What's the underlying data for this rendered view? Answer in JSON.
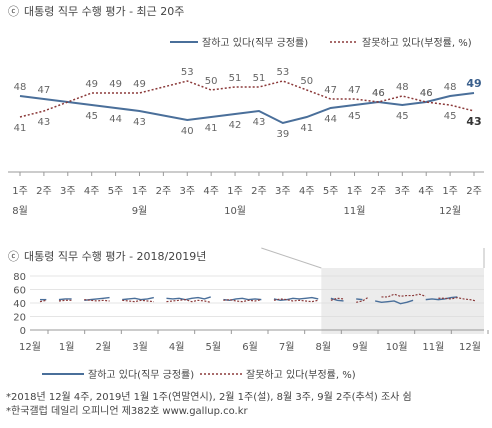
{
  "colors": {
    "approve": "#4a6f9a",
    "disapprove": "#8b3a3a",
    "shade": "#ececec"
  },
  "main": {
    "title": "대통령 직무 수행 평가 - 최근 20주",
    "title_icon": "ⓒ",
    "legend": {
      "approve": "잘하고 있다(직무 긍정률)",
      "disapprove": "잘못하고 있다(부정률, %)"
    },
    "week_labels": [
      "1주",
      "2주",
      "3주",
      "4주",
      "5주",
      "1주",
      "2주",
      "3주",
      "4주",
      "1주",
      "2주",
      "3주",
      "4주",
      "5주",
      "1주",
      "2주",
      "3주",
      "4주",
      "1주",
      "2주"
    ],
    "month_labels": [
      {
        "index": 0,
        "text": "8월"
      },
      {
        "index": 5,
        "text": "9월"
      },
      {
        "index": 9,
        "text": "10월"
      },
      {
        "index": 14,
        "text": "11월"
      },
      {
        "index": 18,
        "text": "12월"
      }
    ]
  },
  "chart_data": [
    {
      "type": "line",
      "title": "대통령 직무 수행 평가 - 최근 20주",
      "x": [
        "8월 1주",
        "8월 2주",
        "8월 3주",
        "8월 4주",
        "8월 5주",
        "9월 1주",
        "9월 2주",
        "9월 3주",
        "9월 4주",
        "10월 1주",
        "10월 2주",
        "10월 3주",
        "10월 4주",
        "10월 5주",
        "11월 1주",
        "11월 2주",
        "11월 3주",
        "11월 4주",
        "12월 1주",
        "12월 2주"
      ],
      "series": [
        {
          "name": "잘하고 있다(직무 긍정률)",
          "values": [
            48,
            47,
            null,
            45,
            44,
            43,
            null,
            40,
            41,
            42,
            43,
            39,
            41,
            44,
            45,
            46,
            45,
            46,
            48,
            49
          ],
          "visible_labels": [
            48,
            47,
            null,
            45,
            44,
            43,
            null,
            40,
            41,
            42,
            43,
            39,
            41,
            44,
            45,
            46,
            45,
            46,
            48,
            49
          ]
        },
        {
          "name": "잘못하고 있다(부정률, %)",
          "values": [
            41,
            43,
            null,
            49,
            49,
            49,
            null,
            53,
            50,
            51,
            51,
            53,
            50,
            47,
            47,
            46,
            48,
            46,
            45,
            43
          ],
          "visible_labels": [
            41,
            43,
            null,
            49,
            49,
            49,
            null,
            53,
            50,
            51,
            51,
            53,
            50,
            47,
            47,
            46,
            48,
            46,
            45,
            43
          ]
        }
      ],
      "ylim": [
        30,
        60
      ]
    },
    {
      "type": "line",
      "title": "대통령 직무 수행 평가 - 2018/2019년",
      "months": [
        "12월",
        "1월",
        "2월",
        "3월",
        "4월",
        "5월",
        "6월",
        "7월",
        "8월",
        "9월",
        "10월",
        "11월",
        "12월"
      ],
      "yticks": [
        0,
        20,
        40,
        60,
        80
      ],
      "ylim": [
        0,
        80
      ],
      "highlight_from": "8월",
      "series": [
        {
          "name": "잘하고 있다(직무 긍정률)",
          "segments": [
            [
              45,
              45
            ],
            [
              45,
              46,
              46
            ],
            [
              44,
              45,
              46,
              47,
              48
            ],
            [
              45,
              46,
              47,
              45,
              46,
              48
            ],
            [
              47,
              46,
              47,
              45,
              47,
              48,
              46,
              49
            ],
            [
              45,
              44,
              46,
              47,
              45,
              46,
              45
            ],
            [
              46,
              44,
              45,
              47,
              46,
              47,
              48,
              46
            ],
            [
              47,
              44,
              43
            ],
            [
              46,
              45
            ],
            [
              43,
              41,
              42,
              43,
              39,
              41,
              44
            ],
            [
              45,
              46,
              45,
              46,
              48,
              49
            ]
          ]
        },
        {
          "name": "잘못하고 있다(부정률, %)",
          "segments": [
            [
              42,
              44
            ],
            [
              43,
              44,
              44
            ],
            [
              45,
              44,
              43,
              44,
              43
            ],
            [
              44,
              43,
              42,
              44,
              43,
              42
            ],
            [
              42,
              43,
              44,
              45,
              42,
              44,
              43,
              41
            ],
            [
              44,
              45,
              43,
              42,
              44,
              43,
              45
            ],
            [
              44,
              46,
              45,
              43,
              44,
              43,
              42,
              44
            ],
            [
              44,
              47,
              46
            ],
            [
              41,
              43,
              49
            ],
            [
              49,
              49,
              53,
              50,
              51,
              51,
              53,
              50
            ],
            [
              47,
              47,
              46,
              48,
              46,
              45,
              43
            ]
          ]
        }
      ]
    }
  ],
  "notes": [
    "*2018년 12월 4주, 2019년 1월 1주(연말연시), 2월 1주(설), 8월 3주, 9월 2주(추석) 조사 쉼",
    "*한국갤럽 데일리 오피니언 제382호 www.gallup.co.kr"
  ]
}
